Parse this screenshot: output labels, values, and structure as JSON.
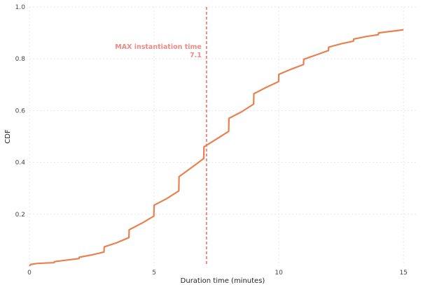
{
  "chart_data": {
    "type": "line",
    "title": "",
    "xlabel": "Duration time (minutes)",
    "ylabel": "CDF",
    "xlim": [
      0,
      15.5
    ],
    "ylim": [
      0,
      1.0
    ],
    "x_ticks": [
      0,
      5,
      10,
      15
    ],
    "y_ticks": [
      0.2,
      0.4,
      0.6,
      0.8,
      1.0
    ],
    "grid": true,
    "series": [
      {
        "color": "#e8804f",
        "points": [
          [
            0,
            0.0
          ],
          [
            0.05,
            0.006
          ],
          [
            0.3,
            0.01
          ],
          [
            0.7,
            0.012
          ],
          [
            0.99,
            0.013
          ],
          [
            1.0,
            0.017
          ],
          [
            1.5,
            0.023
          ],
          [
            1.99,
            0.029
          ],
          [
            2.0,
            0.034
          ],
          [
            2.5,
            0.043
          ],
          [
            2.99,
            0.054
          ],
          [
            3.0,
            0.074
          ],
          [
            3.5,
            0.09
          ],
          [
            3.99,
            0.11
          ],
          [
            4.0,
            0.14
          ],
          [
            4.5,
            0.165
          ],
          [
            4.99,
            0.193
          ],
          [
            5.0,
            0.235
          ],
          [
            5.5,
            0.26
          ],
          [
            5.99,
            0.29
          ],
          [
            6.0,
            0.345
          ],
          [
            6.5,
            0.38
          ],
          [
            6.99,
            0.415
          ],
          [
            7.0,
            0.46
          ],
          [
            7.5,
            0.49
          ],
          [
            7.99,
            0.52
          ],
          [
            8.0,
            0.57
          ],
          [
            8.5,
            0.595
          ],
          [
            8.99,
            0.625
          ],
          [
            9.0,
            0.665
          ],
          [
            9.5,
            0.69
          ],
          [
            9.99,
            0.712
          ],
          [
            10.0,
            0.74
          ],
          [
            10.5,
            0.76
          ],
          [
            10.99,
            0.778
          ],
          [
            11.0,
            0.798
          ],
          [
            11.5,
            0.815
          ],
          [
            11.99,
            0.832
          ],
          [
            12.0,
            0.845
          ],
          [
            12.5,
            0.858
          ],
          [
            12.99,
            0.868
          ],
          [
            13.0,
            0.876
          ],
          [
            13.5,
            0.886
          ],
          [
            13.99,
            0.893
          ],
          [
            14.0,
            0.9
          ],
          [
            14.5,
            0.906
          ],
          [
            15.0,
            0.912
          ]
        ]
      }
    ],
    "annotation": {
      "label": "MAX instantiation time",
      "value_label": "7.1",
      "x": 7.1,
      "line_color": "#ec8a86"
    }
  }
}
